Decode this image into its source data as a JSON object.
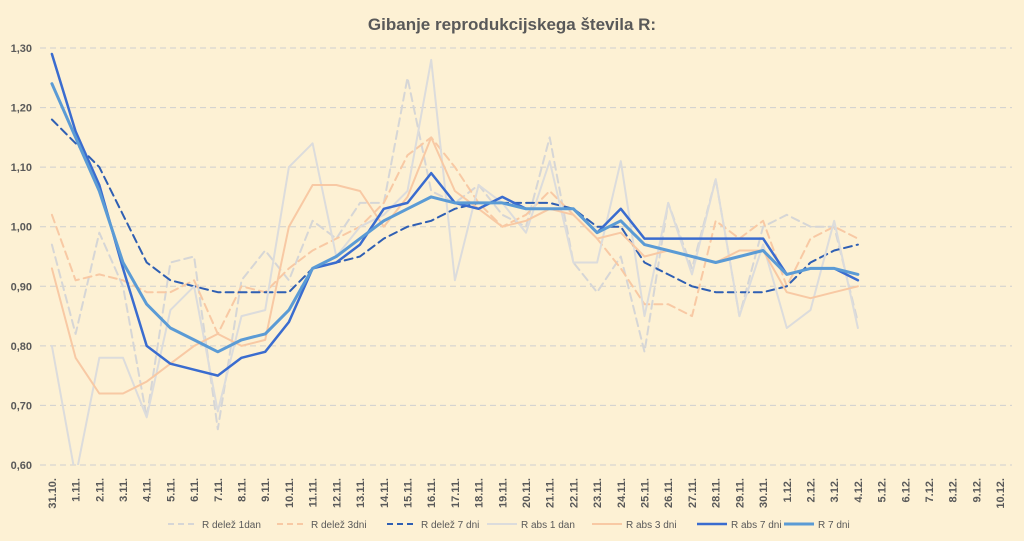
{
  "chart_data": {
    "type": "line",
    "title": "Gibanje reprodukcijskega števila R:",
    "xlabel": "",
    "ylabel": "",
    "ylim": [
      0.6,
      1.3
    ],
    "yticks": [
      "0,60",
      "0,70",
      "0,80",
      "0,90",
      "1,00",
      "1,10",
      "1,20",
      "1,30"
    ],
    "grid": true,
    "legend_position": "bottom",
    "categories": [
      "31.10.",
      "1.11.",
      "2.11.",
      "3.11.",
      "4.11.",
      "5.11.",
      "6.11.",
      "7.11.",
      "8.11.",
      "9.11.",
      "10.11.",
      "11.11.",
      "12.11.",
      "13.11.",
      "14.11.",
      "15.11.",
      "16.11.",
      "17.11.",
      "18.11.",
      "19.11.",
      "20.11.",
      "21.11.",
      "22.11.",
      "23.11.",
      "24.11.",
      "25.11.",
      "26.11.",
      "27.11.",
      "28.11.",
      "29.11.",
      "30.11.",
      "1.12.",
      "2.12.",
      "3.12.",
      "4.12.",
      "5.12.",
      "6.12.",
      "7.12.",
      "8.12.",
      "9.12.",
      "10.12."
    ],
    "series": [
      {
        "name": "R delež 1dan",
        "color": "#d6d6d6",
        "dash": "dashed",
        "width": 2,
        "values": [
          0.97,
          0.82,
          0.99,
          0.9,
          0.68,
          0.94,
          0.95,
          0.66,
          0.91,
          0.96,
          0.91,
          1.01,
          0.98,
          1.04,
          1.04,
          1.25,
          1.06,
          1.04,
          1.07,
          1.02,
          1.0,
          1.15,
          0.94,
          0.89,
          0.95,
          0.79,
          1.04,
          0.93,
          1.08,
          0.85,
          1.0,
          1.02,
          1.0,
          1.0,
          0.84,
          null,
          null,
          null,
          null,
          null,
          null
        ]
      },
      {
        "name": "R delež 3dni",
        "color": "#f8c9a4",
        "dash": "dashed",
        "width": 2,
        "values": [
          1.02,
          0.91,
          0.92,
          0.91,
          0.89,
          0.89,
          0.91,
          0.82,
          0.9,
          0.89,
          0.93,
          0.96,
          0.98,
          1.0,
          1.04,
          1.12,
          1.15,
          1.1,
          1.04,
          1.0,
          1.02,
          1.06,
          1.02,
          0.98,
          0.93,
          0.87,
          0.87,
          0.85,
          1.01,
          0.98,
          1.01,
          0.9,
          0.98,
          1.0,
          0.98,
          null,
          null,
          null,
          null,
          null,
          null
        ]
      },
      {
        "name": "R delež 7 dni",
        "color": "#2f5fb3",
        "dash": "dashed",
        "width": 2,
        "values": [
          1.18,
          1.14,
          1.1,
          1.02,
          0.94,
          0.91,
          0.9,
          0.89,
          0.89,
          0.89,
          0.89,
          0.93,
          0.94,
          0.95,
          0.98,
          1.0,
          1.01,
          1.03,
          1.04,
          1.04,
          1.04,
          1.04,
          1.03,
          1.0,
          1.0,
          0.94,
          0.92,
          0.9,
          0.89,
          0.89,
          0.89,
          0.9,
          0.94,
          0.96,
          0.97,
          null,
          null,
          null,
          null,
          null,
          null
        ]
      },
      {
        "name": "R abs 1 dan",
        "color": "#dcdcdc",
        "dash": "solid",
        "width": 2,
        "values": [
          0.8,
          0.58,
          0.78,
          0.78,
          0.68,
          0.86,
          0.9,
          0.69,
          0.85,
          0.86,
          1.1,
          1.14,
          0.95,
          1.0,
          1.02,
          1.06,
          1.28,
          0.91,
          1.07,
          1.04,
          0.99,
          1.11,
          0.94,
          0.94,
          1.11,
          0.85,
          1.04,
          0.92,
          1.08,
          0.85,
          0.97,
          0.83,
          0.86,
          1.01,
          0.83,
          null,
          null,
          null,
          null,
          null,
          null
        ]
      },
      {
        "name": "R abs 3 dni",
        "color": "#f8c9a4",
        "dash": "solid",
        "width": 2,
        "values": [
          0.93,
          0.78,
          0.72,
          0.72,
          0.74,
          0.77,
          0.8,
          0.82,
          0.8,
          0.81,
          1.0,
          1.07,
          1.07,
          1.06,
          1.0,
          1.05,
          1.15,
          1.06,
          1.03,
          1.0,
          1.01,
          1.03,
          1.02,
          0.98,
          0.99,
          0.95,
          0.96,
          0.95,
          0.94,
          0.96,
          0.96,
          0.89,
          0.88,
          0.89,
          0.9,
          null,
          null,
          null,
          null,
          null,
          null
        ]
      },
      {
        "name": "R abs 7 dni",
        "color": "#3a6ccf",
        "dash": "solid",
        "width": 2.5,
        "values": [
          1.29,
          1.16,
          1.07,
          0.93,
          0.8,
          0.77,
          0.76,
          0.75,
          0.78,
          0.79,
          0.84,
          0.93,
          0.94,
          0.97,
          1.03,
          1.04,
          1.09,
          1.04,
          1.03,
          1.05,
          1.03,
          1.03,
          1.03,
          0.99,
          1.03,
          0.98,
          0.98,
          0.98,
          0.98,
          0.98,
          0.98,
          0.92,
          0.93,
          0.93,
          0.91,
          null,
          null,
          null,
          null,
          null,
          null
        ]
      },
      {
        "name": "R 7 dni",
        "color": "#5b9bd5",
        "dash": "solid",
        "width": 3,
        "values": [
          1.24,
          1.15,
          1.06,
          0.94,
          0.87,
          0.83,
          0.81,
          0.79,
          0.81,
          0.82,
          0.86,
          0.93,
          0.95,
          0.98,
          1.01,
          1.03,
          1.05,
          1.04,
          1.04,
          1.04,
          1.03,
          1.03,
          1.03,
          0.99,
          1.01,
          0.97,
          0.96,
          0.95,
          0.94,
          0.95,
          0.96,
          0.92,
          0.93,
          0.93,
          0.92,
          null,
          null,
          null,
          null,
          null,
          null
        ]
      }
    ]
  }
}
